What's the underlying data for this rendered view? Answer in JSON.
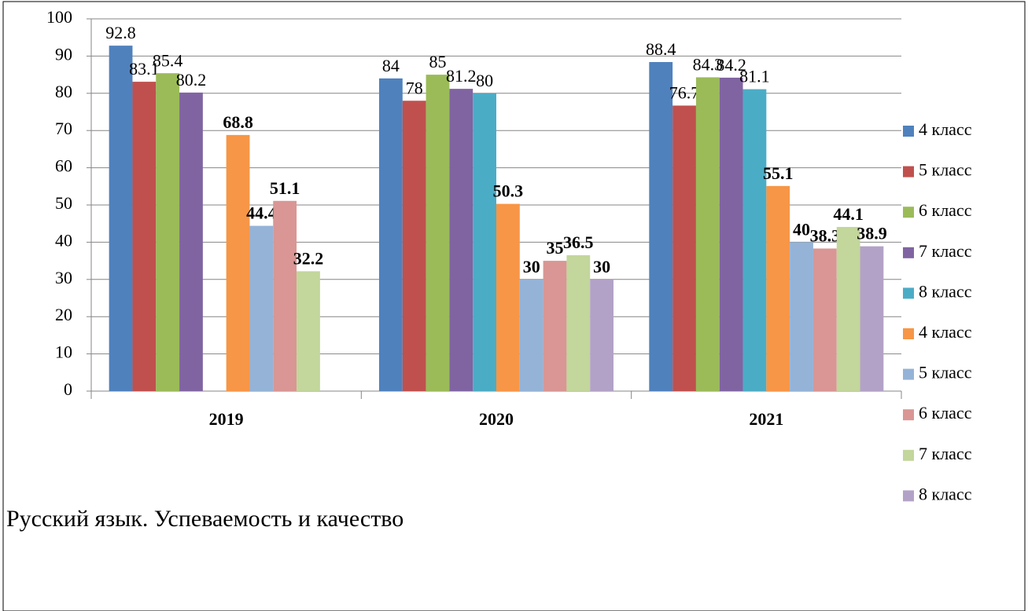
{
  "chart_data": {
    "type": "bar",
    "title": "Русский язык. Успеваемость и качество",
    "categories": [
      "2019",
      "2020",
      "2021"
    ],
    "series": [
      {
        "name": "4 класс",
        "color": "#4f81bd",
        "values": [
          92.8,
          84,
          88.4
        ]
      },
      {
        "name": "5 класс",
        "color": "#c0504d",
        "values": [
          83.1,
          78,
          76.7
        ]
      },
      {
        "name": "6 класс",
        "color": "#9bbb59",
        "values": [
          85.4,
          85,
          84.3
        ]
      },
      {
        "name": "7 класс",
        "color": "#8064a2",
        "values": [
          80.2,
          81.2,
          84.2
        ]
      },
      {
        "name": "8 класс",
        "color": "#4bacc6",
        "values": [
          null,
          80,
          81.1
        ]
      },
      {
        "name": "4 класс",
        "color": "#f79646",
        "values": [
          68.8,
          50.3,
          55.1
        ],
        "label_bold": true
      },
      {
        "name": "5 класс",
        "color": "#95b3d7",
        "values": [
          44.4,
          30,
          40
        ],
        "label_bold": true
      },
      {
        "name": "6 класс",
        "color": "#d99694",
        "values": [
          51.1,
          35,
          38.3
        ],
        "label_bold": true
      },
      {
        "name": "7 класс",
        "color": "#c3d69b",
        "values": [
          32.2,
          36.5,
          44.1
        ],
        "label_bold": true
      },
      {
        "name": "8 класс",
        "color": "#b3a2c7",
        "values": [
          null,
          30,
          38.9
        ],
        "label_bold": true
      }
    ],
    "ylim": [
      0,
      100
    ],
    "yticks": [
      0,
      10,
      20,
      30,
      40,
      50,
      60,
      70,
      80,
      90,
      100
    ],
    "grid": true,
    "legend": "right"
  }
}
